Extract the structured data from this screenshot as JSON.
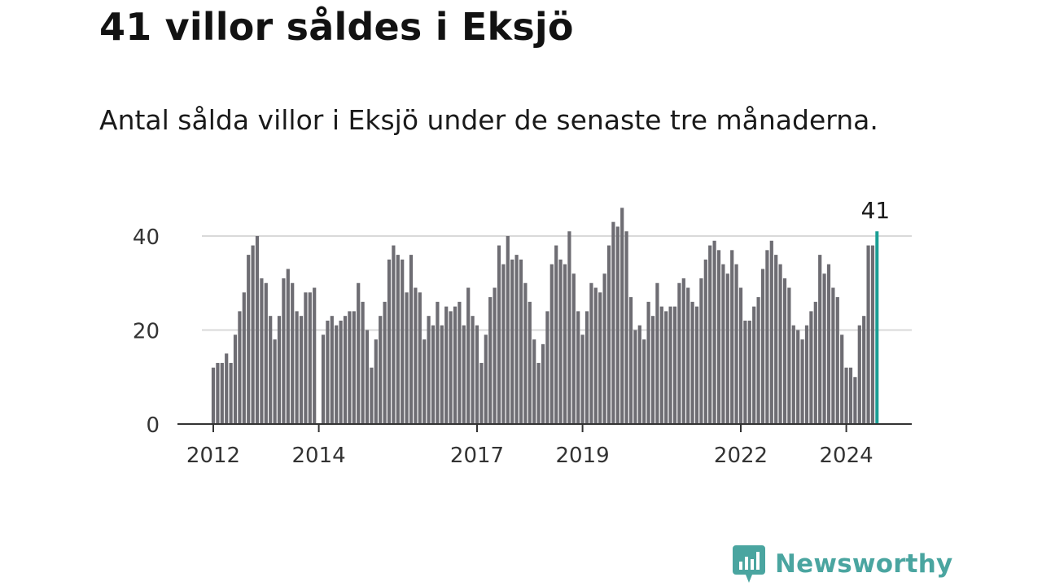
{
  "header": {
    "title": "41 villor såldes i Eksjö",
    "subtitle": "Antal sålda villor i Eksjö under de senaste tre månaderna."
  },
  "brand": {
    "name": "Newsworthy",
    "icon": "newsworthy-logo-icon",
    "color": "#4aa5a0"
  },
  "colors": {
    "bar": "#6e6d73",
    "highlight": "#1a9e94",
    "grid": "#d9d9d9",
    "axis": "#333333"
  },
  "chart_data": {
    "type": "bar",
    "ylim": [
      0,
      48
    ],
    "yticks": [
      0,
      20,
      40
    ],
    "xticks": [
      {
        "label": "2012",
        "index": 0
      },
      {
        "label": "2014",
        "index": 24
      },
      {
        "label": "2017",
        "index": 60
      },
      {
        "label": "2019",
        "index": 84
      },
      {
        "label": "2022",
        "index": 120
      },
      {
        "label": "2024",
        "index": 144
      }
    ],
    "start": "2012-01",
    "frequency": "monthly",
    "grid": true,
    "highlight_label": "41",
    "values": [
      12,
      13,
      13,
      15,
      13,
      19,
      24,
      28,
      36,
      38,
      40,
      31,
      30,
      23,
      18,
      23,
      31,
      33,
      30,
      24,
      23,
      28,
      28,
      29,
      0,
      19,
      22,
      23,
      21,
      22,
      23,
      24,
      24,
      30,
      26,
      20,
      12,
      18,
      23,
      26,
      35,
      38,
      36,
      35,
      28,
      36,
      29,
      28,
      18,
      23,
      21,
      26,
      21,
      25,
      24,
      25,
      26,
      21,
      29,
      23,
      21,
      13,
      19,
      27,
      29,
      38,
      34,
      40,
      35,
      36,
      35,
      30,
      26,
      18,
      13,
      17,
      24,
      34,
      38,
      35,
      34,
      41,
      32,
      24,
      19,
      24,
      30,
      29,
      28,
      32,
      38,
      43,
      42,
      46,
      41,
      27,
      20,
      21,
      18,
      26,
      23,
      30,
      25,
      24,
      25,
      25,
      30,
      31,
      29,
      26,
      25,
      31,
      35,
      38,
      39,
      37,
      34,
      32,
      37,
      34,
      29,
      22,
      22,
      25,
      27,
      33,
      37,
      39,
      36,
      34,
      31,
      29,
      21,
      20,
      18,
      21,
      24,
      26,
      36,
      32,
      34,
      29,
      27,
      19,
      12,
      12,
      10,
      21,
      23,
      38,
      38,
      41
    ]
  }
}
